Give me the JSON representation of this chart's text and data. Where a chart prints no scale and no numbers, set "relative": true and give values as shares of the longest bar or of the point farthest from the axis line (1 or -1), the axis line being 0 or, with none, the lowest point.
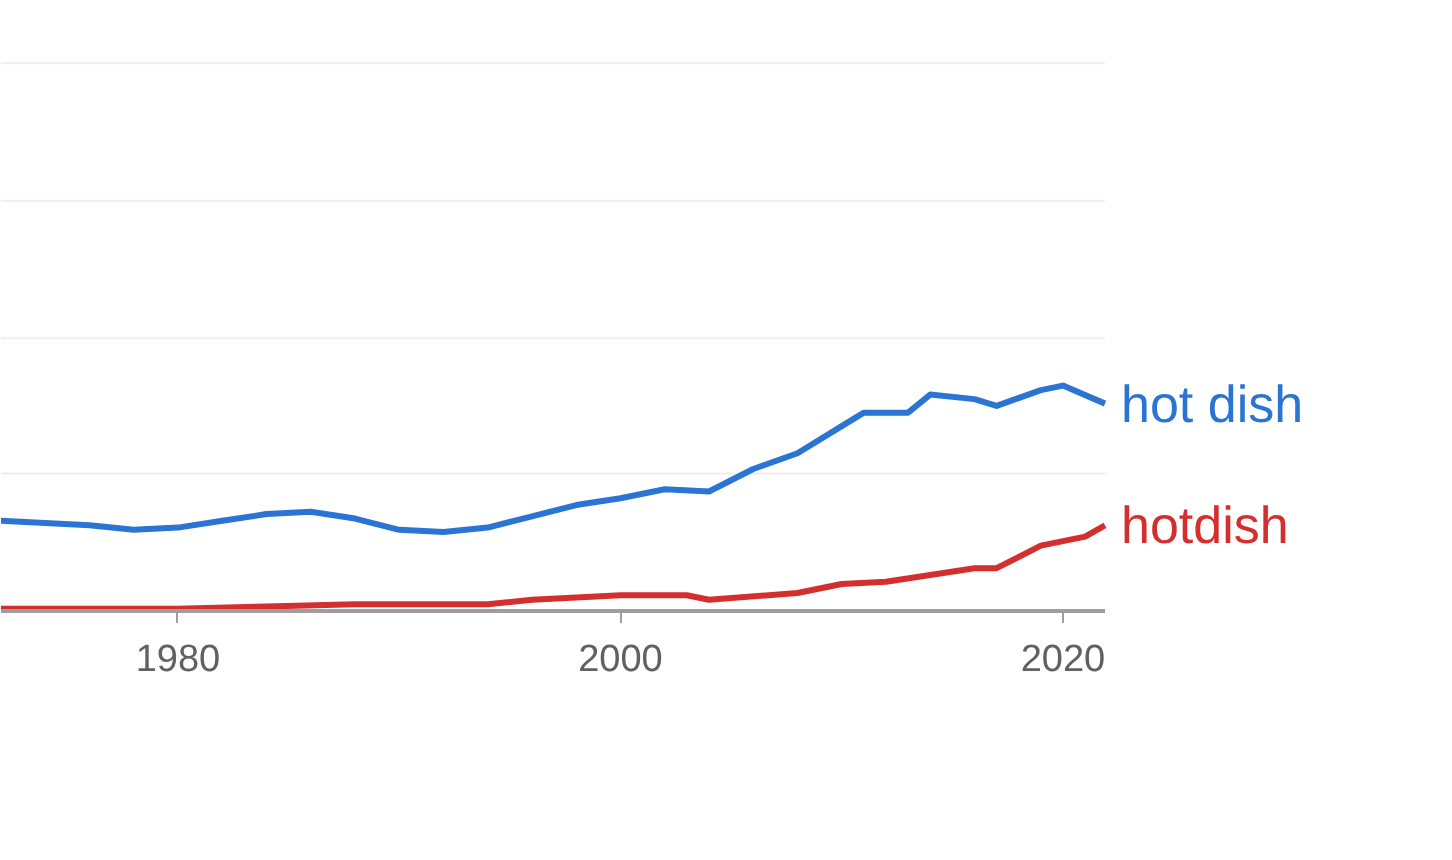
{
  "chart_data": {
    "type": "line",
    "relative": true,
    "xlim": [
      1972,
      2021.9
    ],
    "ref_lines": [
      {
        "axis": "y",
        "value": 0.61,
        "color": "#eeeeee"
      },
      {
        "axis": "y",
        "value": 1.21,
        "color": "#eeeeee"
      },
      {
        "axis": "y",
        "value": 1.82,
        "color": "#eeeeee"
      },
      {
        "axis": "y",
        "value": 2.43,
        "color": "#eeeeee"
      }
    ],
    "xticks": [
      1980,
      2000,
      2020
    ],
    "series": [
      {
        "name": "hot dish",
        "color": "#2a74d4",
        "x": [
          1972,
          1974,
          1976,
          1978,
          1980,
          1982,
          1984,
          1986,
          1988,
          1990,
          1992,
          1994,
          1996,
          1998,
          2000,
          2002,
          2004,
          2006,
          2008,
          2010,
          2011,
          2013,
          2014,
          2016,
          2017,
          2019,
          2020,
          2021.9
        ],
        "values": [
          0.4,
          0.39,
          0.38,
          0.36,
          0.37,
          0.4,
          0.43,
          0.44,
          0.41,
          0.36,
          0.35,
          0.37,
          0.42,
          0.47,
          0.5,
          0.54,
          0.53,
          0.63,
          0.7,
          0.82,
          0.88,
          0.88,
          0.96,
          0.94,
          0.91,
          0.98,
          1,
          0.92
        ]
      },
      {
        "name": "hotdish",
        "color": "#d32f2f",
        "x": [
          1972,
          1980,
          1984,
          1988,
          1994,
          1996,
          2000,
          2003,
          2004,
          2008,
          2010,
          2012,
          2014,
          2016,
          2017,
          2019,
          2021,
          2021.9
        ],
        "values": [
          0.01,
          0.01,
          0.02,
          0.03,
          0.03,
          0.05,
          0.07,
          0.07,
          0.05,
          0.08,
          0.12,
          0.13,
          0.16,
          0.19,
          0.19,
          0.29,
          0.33,
          0.38
        ]
      }
    ]
  }
}
